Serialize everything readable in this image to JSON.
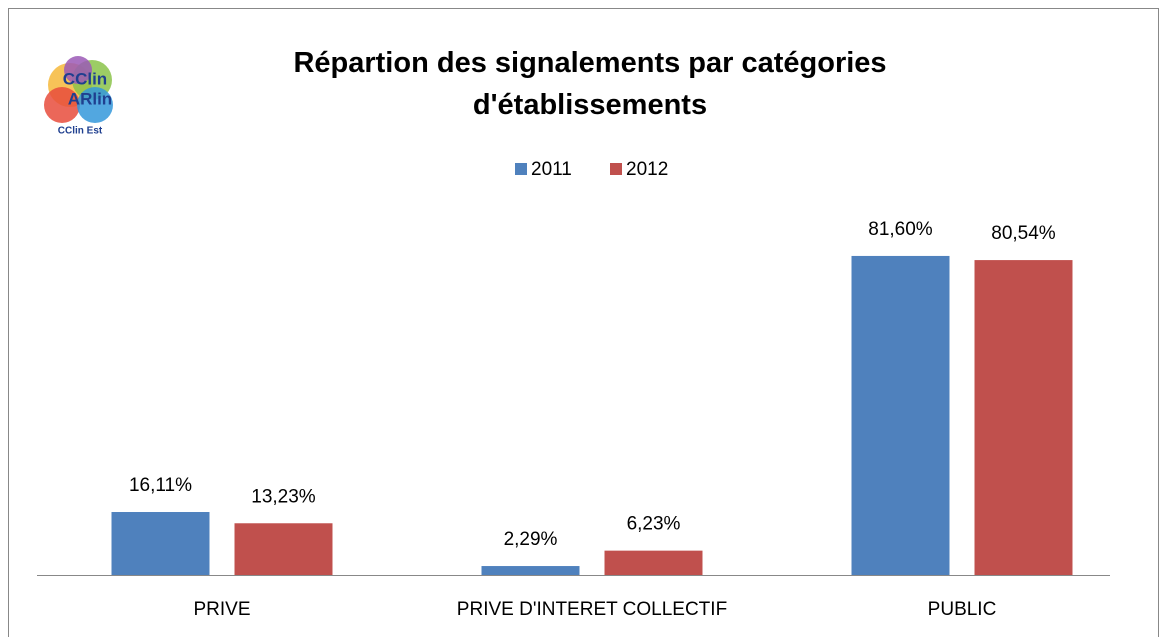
{
  "chart_data": {
    "type": "bar",
    "title": "Répartion des signalements par catégories d'établissements",
    "logo": [
      "CClin",
      "ARlin",
      "CClin Est"
    ],
    "categories": [
      "PRIVE",
      "PRIVE D'INTERET COLLECTIF",
      "PUBLIC"
    ],
    "series": [
      {
        "name": "2011",
        "color": "#4f81bd",
        "values": [
          16.11,
          2.29,
          81.6
        ],
        "value_labels": [
          "16,11%",
          "2,29%",
          "81,60%"
        ]
      },
      {
        "name": "2012",
        "color": "#c0504d",
        "values": [
          13.23,
          6.23,
          80.54
        ],
        "value_labels": [
          "13,23%",
          "6,23%",
          "80,54%"
        ]
      }
    ],
    "legend": "top"
  }
}
